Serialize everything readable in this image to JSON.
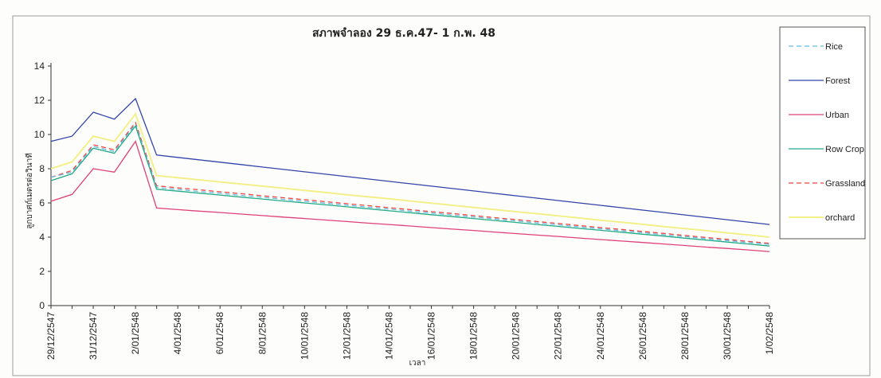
{
  "chart_data": {
    "type": "line",
    "title": "สภาพจำลอง 29 ธ.ค.47- 1 ก.พ. 48",
    "xlabel": "เวลา",
    "ylabel": "ลูกบาศก์เมตรต่อวินาที",
    "ylim": [
      0,
      14
    ],
    "yticks": [
      0,
      2,
      4,
      6,
      8,
      10,
      12,
      14
    ],
    "grid": false,
    "legend_position": "right",
    "x": [
      "29/12/2547",
      "30/12/2547",
      "31/12/2547",
      "1/01/2548",
      "2/01/2548",
      "3/01/2548",
      "4/01/2548",
      "5/01/2548",
      "6/01/2548",
      "7/01/2548",
      "8/01/2548",
      "9/01/2548",
      "10/01/2548",
      "11/01/2548",
      "12/01/2548",
      "13/01/2548",
      "14/01/2548",
      "15/01/2548",
      "16/01/2548",
      "17/01/2548",
      "18/01/2548",
      "19/01/2548",
      "20/01/2548",
      "21/01/2548",
      "22/01/2548",
      "23/01/2548",
      "24/01/2548",
      "25/01/2548",
      "26/01/2548",
      "27/01/2548",
      "28/01/2548",
      "29/01/2548",
      "30/01/2548",
      "31/01/2548",
      "1/02/2548"
    ],
    "xtick_labels": [
      "29/12/2547",
      "31/12/2547",
      "2/01/2548",
      "4/01/2548",
      "6/01/2548",
      "8/01/2548",
      "10/01/2548",
      "12/01/2548",
      "14/01/2548",
      "16/01/2548",
      "18/01/2548",
      "20/01/2548",
      "22/01/2548",
      "24/01/2548",
      "26/01/2548",
      "28/01/2548",
      "30/01/2548",
      "1/02/2548"
    ],
    "series": [
      {
        "name": "Rice",
        "color": "#66bbdd",
        "dash": "dashed",
        "values": [
          7.5,
          7.8,
          9.3,
          9.0,
          10.6,
          6.9,
          6.79,
          6.67,
          6.56,
          6.44,
          6.33,
          6.21,
          6.1,
          5.98,
          5.87,
          5.75,
          5.64,
          5.52,
          5.41,
          5.29,
          5.18,
          5.06,
          4.95,
          4.83,
          4.72,
          4.6,
          4.49,
          4.37,
          4.26,
          4.14,
          4.03,
          3.91,
          3.8,
          3.68,
          3.57
        ]
      },
      {
        "name": "Forest",
        "color": "#3344aa",
        "dash": "solid",
        "values": [
          9.6,
          9.9,
          11.3,
          10.9,
          12.1,
          8.8,
          8.66,
          8.52,
          8.38,
          8.24,
          8.1,
          7.96,
          7.82,
          7.68,
          7.54,
          7.4,
          7.26,
          7.12,
          6.98,
          6.84,
          6.7,
          6.56,
          6.42,
          6.28,
          6.14,
          6.0,
          5.86,
          5.72,
          5.58,
          5.44,
          5.3,
          5.16,
          5.02,
          4.88,
          4.74
        ]
      },
      {
        "name": "Urban",
        "color": "#e0407a",
        "dash": "solid",
        "values": [
          6.1,
          6.5,
          8.0,
          7.8,
          9.6,
          5.7,
          5.61,
          5.52,
          5.44,
          5.35,
          5.26,
          5.17,
          5.09,
          5.0,
          4.91,
          4.82,
          4.74,
          4.65,
          4.56,
          4.47,
          4.39,
          4.3,
          4.21,
          4.12,
          4.04,
          3.95,
          3.86,
          3.77,
          3.69,
          3.6,
          3.51,
          3.42,
          3.34,
          3.25,
          3.16
        ]
      },
      {
        "name": "Row Crop",
        "color": "#22aa88",
        "dash": "solid",
        "values": [
          7.3,
          7.7,
          9.2,
          8.9,
          10.5,
          6.8,
          6.69,
          6.57,
          6.46,
          6.34,
          6.23,
          6.11,
          6.0,
          5.89,
          5.77,
          5.66,
          5.54,
          5.43,
          5.31,
          5.2,
          5.09,
          4.97,
          4.86,
          4.74,
          4.63,
          4.51,
          4.4,
          4.29,
          4.17,
          4.06,
          3.94,
          3.83,
          3.71,
          3.6,
          3.48
        ]
      },
      {
        "name": "Grassland",
        "color": "#ee4444",
        "dash": "dashed",
        "values": [
          7.5,
          7.9,
          9.4,
          9.1,
          10.7,
          7.0,
          6.88,
          6.77,
          6.65,
          6.54,
          6.42,
          6.3,
          6.19,
          6.07,
          5.96,
          5.84,
          5.72,
          5.61,
          5.49,
          5.38,
          5.26,
          5.14,
          5.03,
          4.91,
          4.8,
          4.68,
          4.56,
          4.45,
          4.33,
          4.22,
          4.1,
          3.98,
          3.87,
          3.75,
          3.64
        ]
      },
      {
        "name": "orchard",
        "color": "#f3f08a",
        "dash": "solid",
        "values": [
          8.0,
          8.4,
          9.9,
          9.6,
          11.2,
          7.6,
          7.48,
          7.35,
          7.23,
          7.1,
          6.98,
          6.86,
          6.73,
          6.61,
          6.48,
          6.36,
          6.24,
          6.11,
          5.99,
          5.86,
          5.74,
          5.61,
          5.49,
          5.37,
          5.24,
          5.12,
          4.99,
          4.87,
          4.75,
          4.62,
          4.5,
          4.38,
          4.25,
          4.13,
          4.0
        ]
      }
    ]
  }
}
